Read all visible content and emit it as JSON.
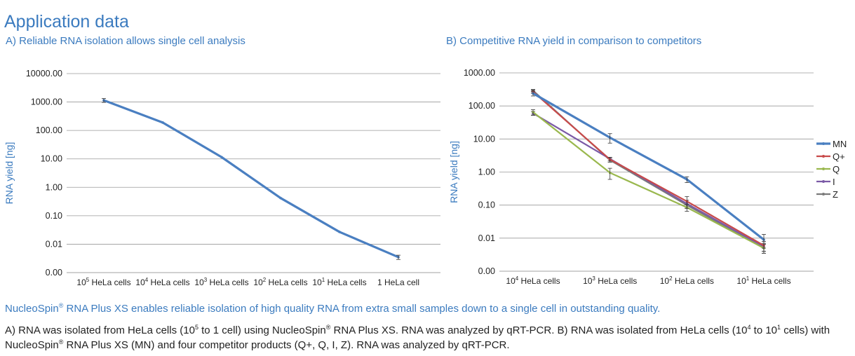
{
  "page": {
    "title": "Application data",
    "highlight": {
      "brand": "NucleoSpin",
      "reg": "®",
      "rest": " RNA Plus XS enables reliable isolation of high quality RNA from extra small samples down to a single cell in outstanding quality."
    },
    "caption": {
      "p1": "A) RNA was isolated from HeLa cells (10",
      "p1_sup": "5",
      "p2": " to 1 cell) using NucleoSpin",
      "p2_reg": "®",
      "p3": " RNA Plus XS. RNA was analyzed by qRT-PCR. B) RNA was isolated from HeLa cells (10",
      "p3_sup": "4",
      "p4": " to 10",
      "p4_sup": "1",
      "p5": " cells) with NucleoSpin",
      "p5_reg": "®",
      "p6": " RNA Plus XS (MN) and four competitor products (Q+, Q, I, Z). RNA was analyzed by qRT-PCR."
    }
  },
  "chart_data": [
    {
      "type": "line",
      "title": "A) Reliable RNA isolation allows single cell analysis",
      "ylabel": "RNA yield [ng]",
      "xlabel": "",
      "yscale": "log",
      "ylim": [
        0.001,
        10000
      ],
      "yticks": [
        10000,
        1000,
        100,
        10,
        1,
        0.1,
        0.01,
        0.001
      ],
      "ytick_labels": [
        "10000.00",
        "1000.00",
        "100.00",
        "10.00",
        "1.00",
        "0.10",
        "0.01",
        "0.00"
      ],
      "categories": [
        {
          "base": "10",
          "sup": "5",
          "rest": " HeLa cells"
        },
        {
          "base": "10",
          "sup": "4",
          "rest": " HeLa cells"
        },
        {
          "base": "10",
          "sup": "3",
          "rest": " HeLa cells"
        },
        {
          "base": "10",
          "sup": "2",
          "rest": " HeLa cells"
        },
        {
          "base": "10",
          "sup": "1",
          "rest": " HeLa cells"
        },
        {
          "base": "",
          "sup": "",
          "rest": "1 HeLa cell"
        }
      ],
      "series": [
        {
          "name": "MN",
          "color": "#4a7fc1",
          "values": [
            1150,
            190,
            11.5,
            0.42,
            0.027,
            0.0035
          ],
          "errors": [
            180,
            0,
            0,
            0,
            0,
            0.0006
          ]
        }
      ],
      "grid": true
    },
    {
      "type": "line",
      "title": "B) Competitive RNA yield in comparison to competitors",
      "ylabel": "RNA yield [ng]",
      "xlabel": "",
      "yscale": "log",
      "ylim": [
        0.001,
        1000
      ],
      "yticks": [
        1000,
        100,
        10,
        1,
        0.1,
        0.01,
        0.001
      ],
      "ytick_labels": [
        "1000.00",
        "100.00",
        "10.00",
        "1.00",
        "0.10",
        "0.01",
        "0.00"
      ],
      "categories": [
        {
          "base": "10",
          "sup": "4",
          "rest": " HeLa cells"
        },
        {
          "base": "10",
          "sup": "3",
          "rest": " HeLa cells"
        },
        {
          "base": "10",
          "sup": "2",
          "rest": " HeLa cells"
        },
        {
          "base": "10",
          "sup": "1",
          "rest": " HeLa cells"
        }
      ],
      "series": [
        {
          "name": "MN",
          "color": "#4a7fc1",
          "values": [
            240,
            11,
            0.6,
            0.009
          ],
          "errors": [
            40,
            3.5,
            0.12,
            0.004
          ]
        },
        {
          "name": "Q+",
          "color": "#c84a4a",
          "values": [
            270,
            2.4,
            0.13,
            0.006
          ],
          "errors": [
            30,
            0.4,
            0.05,
            0.002
          ]
        },
        {
          "name": "Q",
          "color": "#9ab84e",
          "values": [
            65,
            0.95,
            0.085,
            0.005
          ],
          "errors": [
            12,
            0.35,
            0.02,
            0.0015
          ]
        },
        {
          "name": "I",
          "color": "#7b5aa6",
          "values": [
            60,
            2.5,
            0.11,
            0.0055
          ],
          "errors": [
            8,
            0.3,
            0.03,
            0.0015
          ]
        },
        {
          "name": "Z",
          "color": "#7a7a7a",
          "values": [
            290,
            2.3,
            0.1,
            0.005
          ],
          "errors": [
            25,
            0.3,
            0.02,
            0.0015
          ]
        }
      ],
      "legend": "right",
      "grid": true
    }
  ]
}
